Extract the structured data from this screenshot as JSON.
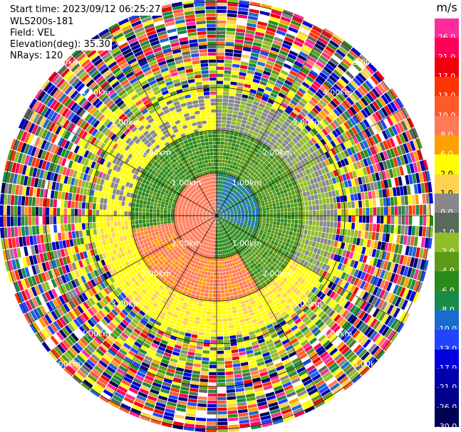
{
  "header": {
    "start_time": "Start time: 2023/09/12 06:25:27",
    "instrument": "WLS200s-181",
    "field": "Field: VEL",
    "elevation": "Elevation(deg): 35.30",
    "nrays": "NRays: 120"
  },
  "range_rings": [
    {
      "label": "1.00km"
    },
    {
      "label": "2.00km"
    },
    {
      "label": "3.00km"
    },
    {
      "label": "4.00km"
    },
    {
      "label": "5.00km"
    }
  ],
  "colorbar": {
    "unit": "m/s",
    "levels": [
      {
        "label": "26.0",
        "color": "#ff2a9c"
      },
      {
        "label": "21.0",
        "color": "#ff0055"
      },
      {
        "label": "17.0",
        "color": "#f0000a"
      },
      {
        "label": "13.0",
        "color": "#ff3300"
      },
      {
        "label": "10.0",
        "color": "#ff5a2a"
      },
      {
        "label": "8.0",
        "color": "#ff7a55"
      },
      {
        "label": "6.0",
        "color": "#ffa000"
      },
      {
        "label": "2.0",
        "color": "#ffff00"
      },
      {
        "label": "1.0",
        "color": "#ffd24d"
      },
      {
        "label": "0.0",
        "color": "#888888"
      },
      {
        "label": "-1.0",
        "color": "#5a6a5a"
      },
      {
        "label": "-2.0",
        "color": "#8fbe2a"
      },
      {
        "label": "-4.0",
        "color": "#5a9a1a"
      },
      {
        "label": "-6.0",
        "color": "#2a8a1a"
      },
      {
        "label": "-8.0",
        "color": "#1a8a4a"
      },
      {
        "label": "-10.0",
        "color": "#1a6ad0"
      },
      {
        "label": "-13.0",
        "color": "#2244ff"
      },
      {
        "label": "-17.0",
        "color": "#0000dd"
      },
      {
        "label": "-21.0",
        "color": "#0000aa"
      },
      {
        "label": "-26.0",
        "color": "#000088"
      },
      {
        "label": "-30.0",
        "color": "#000055"
      }
    ]
  }
}
